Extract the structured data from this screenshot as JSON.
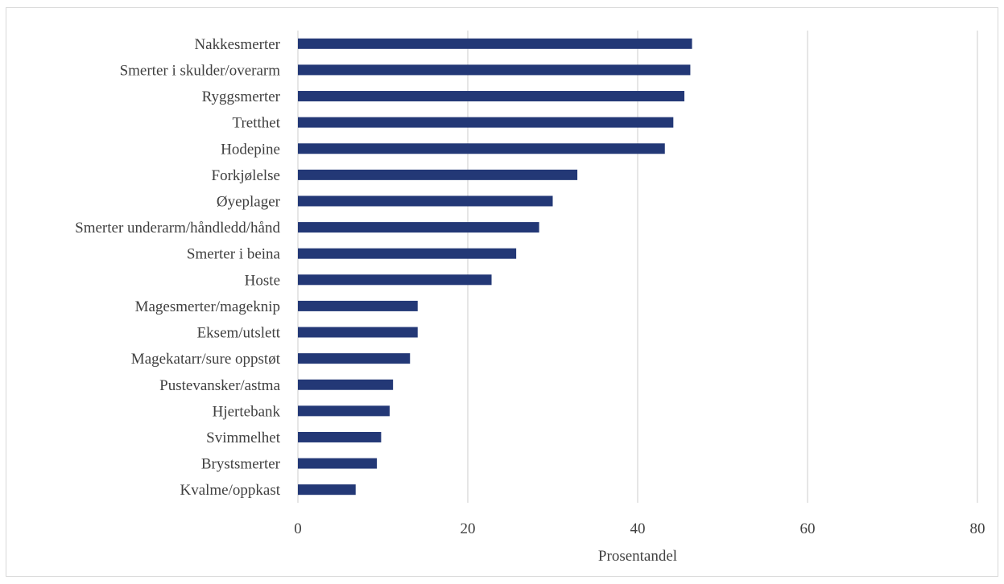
{
  "chart_data": {
    "type": "bar",
    "orientation": "horizontal",
    "categories": [
      "Nakkesmerter",
      "Smerter i skulder/overarm",
      "Ryggsmerter",
      "Tretthet",
      "Hodepine",
      "Forkjølelse",
      "Øyeplager",
      "Smerter underarm/håndledd/hånd",
      "Smerter i beina",
      "Hoste",
      "Magesmerter/mageknip",
      "Eksem/utslett",
      "Magekatarr/sure oppstøt",
      "Pustevansker/astma",
      "Hjertebank",
      "Svimmelhet",
      "Brystsmerter",
      "Kvalme/oppkast"
    ],
    "values": [
      46.4,
      46.2,
      45.5,
      44.2,
      43.2,
      32.9,
      30.0,
      28.4,
      25.7,
      22.8,
      14.1,
      14.1,
      13.2,
      11.2,
      10.8,
      9.8,
      9.3,
      6.8
    ],
    "xlabel": "Prosentandel",
    "ylabel": "",
    "xlim": [
      0,
      80
    ],
    "xticks": [
      0,
      20,
      40,
      60,
      80
    ],
    "tick_labels": [
      "0",
      "20",
      "40",
      "60",
      "80"
    ],
    "bar_color": "#233876",
    "grid": "vertical"
  }
}
